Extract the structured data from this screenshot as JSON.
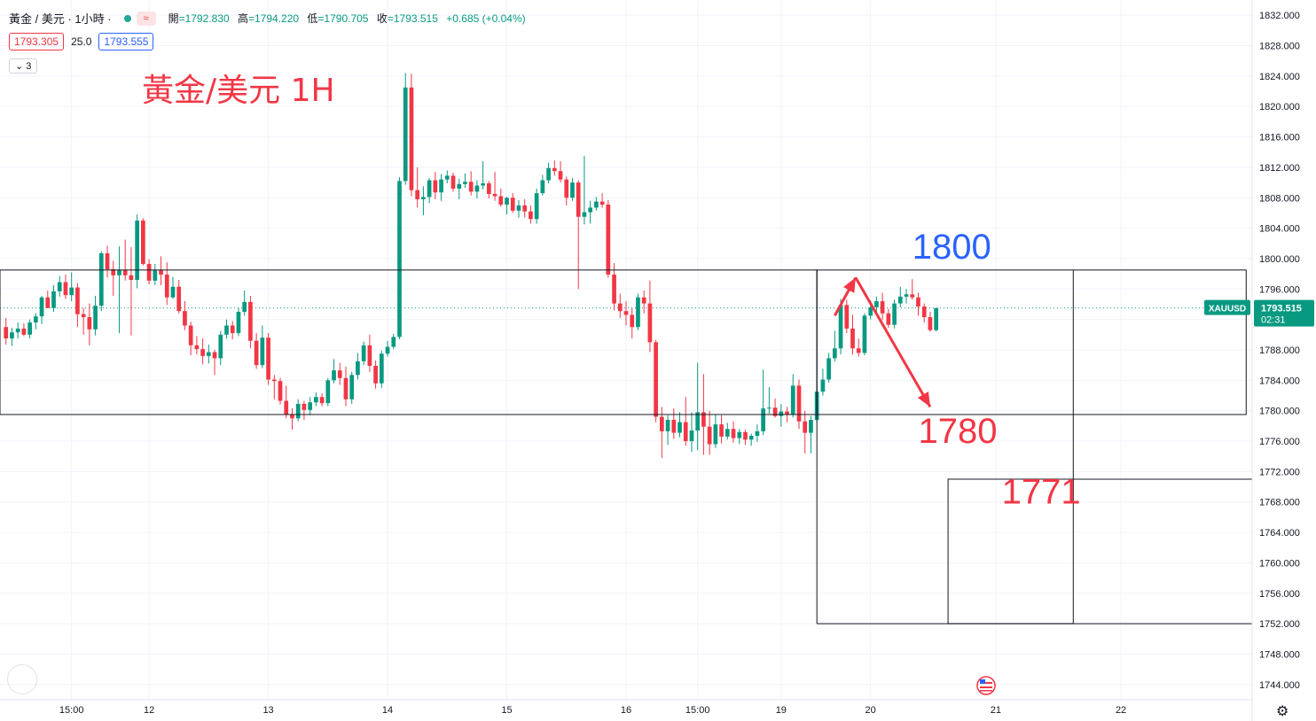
{
  "header": {
    "symbol_title": "黃金 / 美元 · 1小時 ·",
    "indicator_icon": "wave-icon",
    "ohlc": {
      "open_label": "開",
      "open": "=1792.830",
      "high_label": "高",
      "high": "=1794.220",
      "low_label": "低",
      "low": "=1790.705",
      "close_label": "收",
      "close": "=1793.515",
      "change": "+0.685 (+0.04%)"
    }
  },
  "trade": {
    "sell": "1793.305",
    "spread": "25.0",
    "buy": "1793.555"
  },
  "collapse_label": "3",
  "colors": {
    "up": "#089981",
    "down": "#f23645",
    "blue_annotation": "#2962ff",
    "red_annotation": "#f23645"
  },
  "chart_data": {
    "type": "candlestick",
    "title": "黃金/美元 1H",
    "ylim": [
      1742,
      1834
    ],
    "y_ticks": [
      "1832.000",
      "1828.000",
      "1824.000",
      "1820.000",
      "1816.000",
      "1812.000",
      "1808.000",
      "1804.000",
      "1800.000",
      "1796.000",
      "1792.000",
      "1788.000",
      "1784.000",
      "1780.000",
      "1776.000",
      "1772.000",
      "1768.000",
      "1764.000",
      "1760.000",
      "1756.000",
      "1752.000",
      "1748.000",
      "1744.000"
    ],
    "x_ticks": [
      {
        "label": "15:00",
        "index": 11
      },
      {
        "label": "12",
        "index": 24
      },
      {
        "label": "13",
        "index": 44
      },
      {
        "label": "14",
        "index": 64
      },
      {
        "label": "15",
        "index": 84
      },
      {
        "label": "16",
        "index": 104
      },
      {
        "label": "15:00",
        "index": 116
      },
      {
        "label": "19",
        "index": 130
      },
      {
        "label": "20",
        "index": 145
      },
      {
        "label": "21",
        "index": 166
      },
      {
        "label": "22",
        "index": 187
      }
    ],
    "x_range": [
      -1,
      209
    ],
    "symbol_tag": "XAUUSD",
    "last_price": "1793.515",
    "countdown": "02:31",
    "last_value": 1793.515,
    "candles_ohlc": [
      [
        1791.0,
        1792.2,
        1788.7,
        1789.5
      ],
      [
        1789.5,
        1790.9,
        1788.5,
        1790.3
      ],
      [
        1790.3,
        1791.6,
        1789.5,
        1790.8
      ],
      [
        1790.8,
        1791.5,
        1789.8,
        1790.0
      ],
      [
        1790.0,
        1792.0,
        1789.5,
        1791.6
      ],
      [
        1791.6,
        1792.8,
        1790.7,
        1792.4
      ],
      [
        1792.4,
        1795.1,
        1791.4,
        1794.9
      ],
      [
        1794.9,
        1795.8,
        1793.5,
        1793.5
      ],
      [
        1793.5,
        1796.5,
        1793.0,
        1795.7
      ],
      [
        1795.7,
        1797.7,
        1795.0,
        1796.9
      ],
      [
        1796.9,
        1797.9,
        1794.7,
        1795.2
      ],
      [
        1795.2,
        1798.2,
        1794.4,
        1796.2
      ],
      [
        1796.2,
        1796.8,
        1791.0,
        1792.7
      ],
      [
        1792.7,
        1793.5,
        1790.0,
        1792.3
      ],
      [
        1792.3,
        1794.1,
        1788.6,
        1790.7
      ],
      [
        1790.7,
        1795.1,
        1789.9,
        1793.8
      ],
      [
        1793.8,
        1801.0,
        1793.1,
        1800.7
      ],
      [
        1800.7,
        1801.7,
        1797.5,
        1798.6
      ],
      [
        1798.6,
        1799.7,
        1795.1,
        1797.8
      ],
      [
        1797.8,
        1801.6,
        1790.2,
        1798.5
      ],
      [
        1798.5,
        1802.5,
        1797.1,
        1797.8
      ],
      [
        1797.8,
        1801.5,
        1789.9,
        1797.2
      ],
      [
        1797.2,
        1805.8,
        1796.1,
        1805.0
      ],
      [
        1805.0,
        1805.3,
        1799.1,
        1799.3
      ],
      [
        1799.3,
        1799.9,
        1796.6,
        1797.1
      ],
      [
        1797.1,
        1799.3,
        1796.5,
        1798.5
      ],
      [
        1798.5,
        1800.3,
        1796.5,
        1797.9
      ],
      [
        1797.9,
        1799.5,
        1793.9,
        1794.9
      ],
      [
        1794.9,
        1797.6,
        1794.7,
        1796.3
      ],
      [
        1796.3,
        1797.2,
        1792.8,
        1793.1
      ],
      [
        1793.1,
        1794.4,
        1790.6,
        1791.2
      ],
      [
        1791.2,
        1791.7,
        1787.3,
        1788.6
      ],
      [
        1788.6,
        1789.8,
        1787.4,
        1788.1
      ],
      [
        1788.1,
        1789.5,
        1786.1,
        1787.2
      ],
      [
        1787.2,
        1788.7,
        1786.2,
        1787.7
      ],
      [
        1787.7,
        1788.0,
        1784.7,
        1786.9
      ],
      [
        1786.9,
        1790.5,
        1786.0,
        1790.0
      ],
      [
        1790.0,
        1792.0,
        1789.5,
        1791.2
      ],
      [
        1791.2,
        1791.8,
        1789.4,
        1790.2
      ],
      [
        1790.2,
        1793.5,
        1789.8,
        1793.0
      ],
      [
        1793.0,
        1795.8,
        1792.5,
        1794.3
      ],
      [
        1794.3,
        1795.1,
        1788.2,
        1789.2
      ],
      [
        1789.2,
        1790.2,
        1785.5,
        1786.0
      ],
      [
        1786.0,
        1791.2,
        1785.6,
        1789.6
      ],
      [
        1789.6,
        1790.2,
        1783.4,
        1784.1
      ],
      [
        1784.1,
        1784.7,
        1781.5,
        1783.9
      ],
      [
        1783.9,
        1784.3,
        1780.8,
        1781.3
      ],
      [
        1781.3,
        1783.3,
        1779.0,
        1779.5
      ],
      [
        1779.5,
        1780.3,
        1777.5,
        1779.0
      ],
      [
        1779.0,
        1781.5,
        1778.6,
        1780.9
      ],
      [
        1780.9,
        1781.3,
        1778.8,
        1780.1
      ],
      [
        1780.1,
        1781.8,
        1779.4,
        1781.1
      ],
      [
        1781.1,
        1782.4,
        1780.6,
        1781.8
      ],
      [
        1781.8,
        1782.3,
        1780.6,
        1781.0
      ],
      [
        1781.0,
        1784.3,
        1780.6,
        1784.0
      ],
      [
        1784.0,
        1786.8,
        1783.6,
        1785.3
      ],
      [
        1785.3,
        1786.3,
        1783.4,
        1784.3
      ],
      [
        1784.3,
        1785.8,
        1780.6,
        1781.5
      ],
      [
        1781.5,
        1785.1,
        1780.9,
        1784.7
      ],
      [
        1784.7,
        1787.6,
        1784.1,
        1786.5
      ],
      [
        1786.5,
        1789.1,
        1786.0,
        1788.6
      ],
      [
        1788.6,
        1790.0,
        1785.1,
        1785.9
      ],
      [
        1785.9,
        1786.6,
        1782.9,
        1783.6
      ],
      [
        1783.6,
        1787.9,
        1783.0,
        1787.5
      ],
      [
        1787.5,
        1789.2,
        1787.1,
        1788.4
      ],
      [
        1788.4,
        1790.1,
        1788.1,
        1789.7
      ],
      [
        1789.7,
        1810.7,
        1789.4,
        1810.2
      ],
      [
        1810.2,
        1824.4,
        1809.7,
        1822.5
      ],
      [
        1822.5,
        1824.3,
        1808.2,
        1809.0
      ],
      [
        1809.0,
        1812.0,
        1806.7,
        1807.8
      ],
      [
        1807.8,
        1809.5,
        1805.7,
        1808.1
      ],
      [
        1808.1,
        1810.6,
        1807.3,
        1810.3
      ],
      [
        1810.3,
        1811.4,
        1807.8,
        1808.7
      ],
      [
        1808.7,
        1811.1,
        1807.6,
        1810.4
      ],
      [
        1810.4,
        1811.6,
        1809.9,
        1810.9
      ],
      [
        1810.9,
        1811.3,
        1808.8,
        1809.2
      ],
      [
        1809.2,
        1810.5,
        1807.8,
        1809.8
      ],
      [
        1809.8,
        1811.2,
        1809.3,
        1810.1
      ],
      [
        1810.1,
        1811.5,
        1808.3,
        1808.8
      ],
      [
        1808.8,
        1810.3,
        1807.9,
        1809.6
      ],
      [
        1809.6,
        1812.8,
        1809.1,
        1809.9
      ],
      [
        1809.9,
        1810.2,
        1807.9,
        1808.5
      ],
      [
        1808.5,
        1811.4,
        1807.6,
        1808.2
      ],
      [
        1808.2,
        1809.2,
        1806.8,
        1807.1
      ],
      [
        1807.1,
        1808.1,
        1805.8,
        1808.0
      ],
      [
        1808.0,
        1808.6,
        1806.0,
        1806.3
      ],
      [
        1806.3,
        1807.7,
        1805.4,
        1807.0
      ],
      [
        1807.0,
        1807.8,
        1805.4,
        1806.2
      ],
      [
        1806.2,
        1807.0,
        1804.6,
        1805.2
      ],
      [
        1805.2,
        1809.2,
        1804.6,
        1808.6
      ],
      [
        1808.6,
        1811.0,
        1808.3,
        1810.3
      ],
      [
        1810.3,
        1812.6,
        1809.9,
        1811.9
      ],
      [
        1811.9,
        1812.9,
        1810.9,
        1811.5
      ],
      [
        1811.5,
        1812.8,
        1810.0,
        1810.4
      ],
      [
        1810.4,
        1810.8,
        1807.0,
        1808.0
      ],
      [
        1808.0,
        1810.6,
        1807.6,
        1810.0
      ],
      [
        1810.0,
        1810.3,
        1796.0,
        1805.5
      ],
      [
        1805.5,
        1813.5,
        1804.5,
        1806.1
      ],
      [
        1806.1,
        1807.6,
        1804.6,
        1806.7
      ],
      [
        1806.7,
        1808.1,
        1806.3,
        1807.5
      ],
      [
        1807.5,
        1808.6,
        1806.7,
        1807.1
      ],
      [
        1807.1,
        1807.7,
        1797.5,
        1797.9
      ],
      [
        1797.9,
        1799.4,
        1793.2,
        1794.1
      ],
      [
        1794.1,
        1795.4,
        1792.2,
        1793.1
      ],
      [
        1793.1,
        1794.4,
        1791.2,
        1792.6
      ],
      [
        1792.6,
        1793.5,
        1789.5,
        1791.0
      ],
      [
        1791.0,
        1795.4,
        1790.6,
        1794.9
      ],
      [
        1794.9,
        1795.8,
        1792.8,
        1794.1
      ],
      [
        1794.1,
        1797.1,
        1787.7,
        1789.0
      ],
      [
        1789.0,
        1789.3,
        1778.5,
        1779.2
      ],
      [
        1779.2,
        1780.5,
        1773.8,
        1777.3
      ],
      [
        1777.3,
        1779.4,
        1775.5,
        1778.8
      ],
      [
        1778.8,
        1780.3,
        1776.3,
        1777.1
      ],
      [
        1777.1,
        1779.8,
        1776.5,
        1778.5
      ],
      [
        1778.5,
        1781.8,
        1775.4,
        1776.0
      ],
      [
        1776.0,
        1779.8,
        1774.6,
        1777.4
      ],
      [
        1777.4,
        1786.3,
        1774.8,
        1779.8
      ],
      [
        1779.8,
        1784.8,
        1774.2,
        1777.9
      ],
      [
        1777.9,
        1780.0,
        1774.2,
        1775.6
      ],
      [
        1775.6,
        1779.5,
        1775.1,
        1778.2
      ],
      [
        1778.2,
        1779.4,
        1775.7,
        1776.6
      ],
      [
        1776.6,
        1778.4,
        1776.2,
        1777.6
      ],
      [
        1777.6,
        1778.6,
        1775.8,
        1776.4
      ],
      [
        1776.4,
        1777.6,
        1775.6,
        1777.2
      ],
      [
        1777.2,
        1777.5,
        1775.5,
        1776.2
      ],
      [
        1776.2,
        1777.0,
        1775.4,
        1776.7
      ],
      [
        1776.7,
        1778.2,
        1775.9,
        1777.3
      ],
      [
        1777.3,
        1785.4,
        1776.8,
        1780.3
      ],
      [
        1780.3,
        1783.1,
        1779.6,
        1780.4
      ],
      [
        1780.4,
        1781.6,
        1779.1,
        1779.3
      ],
      [
        1779.3,
        1780.9,
        1777.9,
        1779.9
      ],
      [
        1779.9,
        1780.5,
        1778.5,
        1779.5
      ],
      [
        1779.5,
        1784.8,
        1779.1,
        1783.3
      ],
      [
        1783.3,
        1784.1,
        1777.6,
        1778.6
      ],
      [
        1778.6,
        1780.0,
        1774.4,
        1777.1
      ],
      [
        1777.1,
        1779.3,
        1774.4,
        1778.8
      ],
      [
        1778.8,
        1782.9,
        1778.4,
        1782.5
      ],
      [
        1782.5,
        1785.5,
        1782.0,
        1784.1
      ],
      [
        1784.1,
        1787.6,
        1783.7,
        1786.9
      ],
      [
        1786.9,
        1790.5,
        1786.5,
        1788.2
      ],
      [
        1788.2,
        1794.7,
        1787.4,
        1793.9
      ],
      [
        1793.9,
        1794.6,
        1790.2,
        1790.8
      ],
      [
        1790.8,
        1792.6,
        1787.4,
        1788.2
      ],
      [
        1788.2,
        1789.5,
        1787.1,
        1787.6
      ],
      [
        1787.6,
        1792.8,
        1787.3,
        1792.5
      ],
      [
        1792.5,
        1794.5,
        1792.0,
        1793.6
      ],
      [
        1793.6,
        1795.0,
        1792.9,
        1794.4
      ],
      [
        1794.4,
        1795.5,
        1791.9,
        1792.8
      ],
      [
        1792.8,
        1793.4,
        1790.9,
        1791.3
      ],
      [
        1791.3,
        1794.6,
        1790.8,
        1794.1
      ],
      [
        1794.1,
        1796.3,
        1793.6,
        1795.0
      ],
      [
        1795.0,
        1796.0,
        1794.1,
        1795.3
      ],
      [
        1795.3,
        1797.3,
        1794.6,
        1794.9
      ],
      [
        1794.9,
        1795.5,
        1792.5,
        1793.7
      ],
      [
        1793.7,
        1794.1,
        1791.6,
        1792.3
      ],
      [
        1792.3,
        1793.0,
        1790.4,
        1790.6
      ],
      [
        1790.6,
        1793.4,
        1790.4,
        1793.5
      ]
    ],
    "lines": [
      {
        "type": "box",
        "x0": -1,
        "x1": 136,
        "y0": 1779.5,
        "y1": 1798.5
      },
      {
        "type": "box",
        "x0": 136,
        "x1": 208,
        "y0": 1779.5,
        "y1": 1798.5
      },
      {
        "type": "vline",
        "x": 136,
        "y0": 1752.0,
        "y1": 1798.5
      },
      {
        "type": "hline",
        "x0": 136,
        "x1": 209,
        "y": 1752.0
      },
      {
        "type": "box",
        "x0": 158,
        "x1": 179,
        "y0": 1752.0,
        "y1": 1771.0
      },
      {
        "type": "hline",
        "x0": 179,
        "x1": 209,
        "y": 1771.0
      },
      {
        "type": "vline",
        "x": 179,
        "y0": 1771.0,
        "y1": 1798.5
      }
    ],
    "arrows": [
      {
        "x0": 139,
        "y0": 1792.5,
        "x1": 142.5,
        "y1": 1797.5
      },
      {
        "x0": 142.5,
        "y0": 1797.5,
        "x1": 155,
        "y1": 1780.5
      }
    ],
    "annotations": [
      {
        "text": "1800",
        "color": "blue",
        "x": 152,
        "y": 1800.0
      },
      {
        "text": "1780",
        "color": "red",
        "x": 153,
        "y": 1775.8
      },
      {
        "text": "1771",
        "color": "red",
        "x": 167,
        "y": 1767.8
      }
    ]
  }
}
